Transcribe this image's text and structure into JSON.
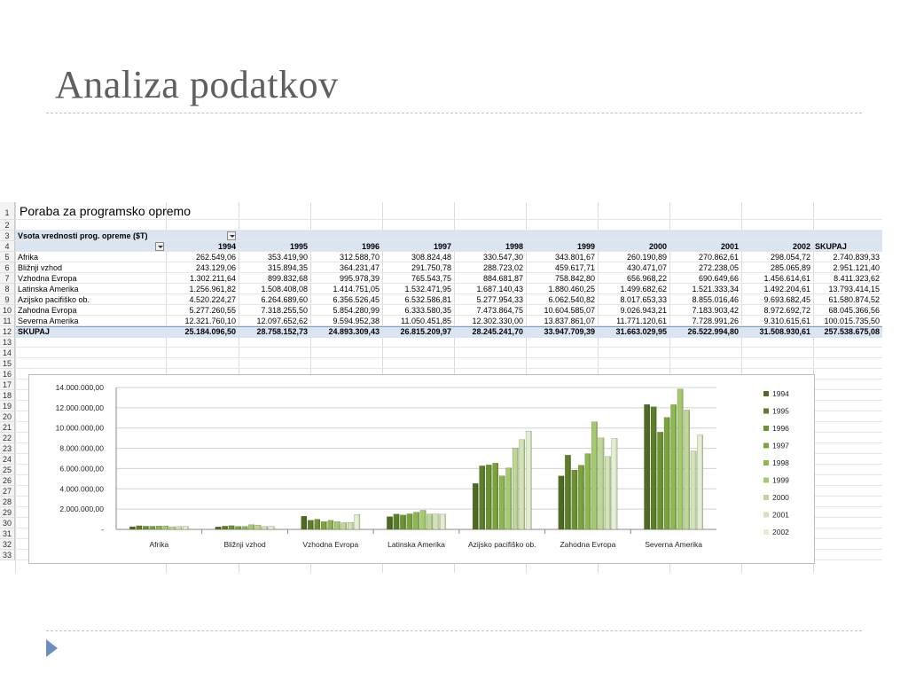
{
  "slide": {
    "title": "Analiza podatkov"
  },
  "sheet": {
    "row_numbers": [
      "1",
      "2",
      "3",
      "4",
      "5",
      "6",
      "7",
      "8",
      "9",
      "10",
      "11",
      "12",
      "13",
      "14",
      "15",
      "16",
      "17",
      "18",
      "19",
      "20",
      "21",
      "22",
      "23",
      "24",
      "25",
      "26",
      "27",
      "28",
      "29",
      "30",
      "31",
      "32",
      "33"
    ],
    "title": "Poraba za programsko opremo",
    "pivot_label": "Vsota vrednosti prog. opreme ($T)",
    "years": [
      "1994",
      "1995",
      "1996",
      "1997",
      "1998",
      "1999",
      "2000",
      "2001",
      "2002"
    ],
    "total_header": "SKUPAJ",
    "rows": [
      {
        "region": "Afrika",
        "values": [
          "262.549,06",
          "353.419,90",
          "312.588,70",
          "308.824,48",
          "330.547,30",
          "343.801,67",
          "260.190,89",
          "270.862,61",
          "298.054,72"
        ],
        "total": "2.740.839,33"
      },
      {
        "region": "Bližnji vzhod",
        "values": [
          "243.129,06",
          "315.894,35",
          "364.231,47",
          "291.750,78",
          "288.723,02",
          "459.617,71",
          "430.471,07",
          "272.238,05",
          "285.065,89"
        ],
        "total": "2.951.121,40"
      },
      {
        "region": "Vzhodna Evropa",
        "values": [
          "1.302.211,64",
          "899.832,68",
          "995.978,39",
          "765.543,75",
          "884.681,87",
          "758.842,80",
          "656.968,22",
          "690.649,66",
          "1.456.614,61"
        ],
        "total": "8.411.323,62"
      },
      {
        "region": "Latinska Amerika",
        "values": [
          "1.256.961,82",
          "1.508.408,08",
          "1.414.751,05",
          "1.532.471,95",
          "1.687.140,43",
          "1.880.460,25",
          "1.499.682,62",
          "1.521.333,34",
          "1.492.204,61"
        ],
        "total": "13.793.414,15"
      },
      {
        "region": "Azijsko pacifiško ob.",
        "values": [
          "4.520.224,27",
          "6.264.689,60",
          "6.356.526,45",
          "6.532.586,81",
          "5.277.954,33",
          "6.062.540,82",
          "8.017.653,33",
          "8.855.016,46",
          "9.693.682,45"
        ],
        "total": "61.580.874,52"
      },
      {
        "region": "Zahodna Evropa",
        "values": [
          "5.277.260,55",
          "7.318.255,50",
          "5.854.280,99",
          "6.333.580,35",
          "7.473.864,75",
          "10.604.585,07",
          "9.026.943,21",
          "7.183.903,42",
          "8.972.692,72"
        ],
        "total": "68.045.366,56"
      },
      {
        "region": "Severna Amerika",
        "values": [
          "12.321.760,10",
          "12.097.652,62",
          "9.594.952,38",
          "11.050.451,85",
          "12.302.330,00",
          "13.837.861,07",
          "11.771.120,61",
          "7.728.991,26",
          "9.310.615,61"
        ],
        "total": "100.015.735,50"
      }
    ],
    "total_row": {
      "label": "SKUPAJ",
      "values": [
        "25.184.096,50",
        "28.758.152,73",
        "24.893.309,43",
        "26.815.209,97",
        "28.245.241,70",
        "33.947.709,39",
        "31.663.029,95",
        "26.522.994,80",
        "31.508.930,61"
      ],
      "total": "257.538.675,08"
    }
  },
  "chart_data": {
    "type": "bar",
    "categories": [
      "Afrika",
      "Bližnji vzhod",
      "Vzhodna Evropa",
      "Latinska Amerika",
      "Azijsko pacifiško ob.",
      "Zahodna Evropa",
      "Severna Amerika"
    ],
    "series": [
      {
        "name": "1994",
        "values": [
          262549.06,
          243129.06,
          1302211.64,
          1256961.82,
          4520224.27,
          5277260.55,
          12321760.1
        ]
      },
      {
        "name": "1995",
        "values": [
          353419.9,
          315894.35,
          899832.68,
          1508408.08,
          6264689.6,
          7318255.5,
          12097652.62
        ]
      },
      {
        "name": "1996",
        "values": [
          312588.7,
          364231.47,
          995978.39,
          1414751.05,
          6356526.45,
          5854280.99,
          9594952.38
        ]
      },
      {
        "name": "1997",
        "values": [
          308824.48,
          291750.78,
          765543.75,
          1532471.95,
          6532586.81,
          6333580.35,
          11050451.85
        ]
      },
      {
        "name": "1998",
        "values": [
          330547.3,
          288723.02,
          884681.87,
          1687140.43,
          5277954.33,
          7473864.75,
          12302330.0
        ]
      },
      {
        "name": "1999",
        "values": [
          343801.67,
          459617.71,
          758842.8,
          1880460.25,
          6062540.82,
          10604585.07,
          13837861.07
        ]
      },
      {
        "name": "2000",
        "values": [
          260190.89,
          430471.07,
          656968.22,
          1499682.62,
          8017653.33,
          9026943.21,
          11771120.61
        ]
      },
      {
        "name": "2001",
        "values": [
          270862.61,
          272238.05,
          690649.66,
          1521333.34,
          8855016.46,
          7183903.42,
          7728991.26
        ]
      },
      {
        "name": "2002",
        "values": [
          298054.72,
          285065.89,
          1456614.61,
          1492204.61,
          9693682.45,
          8972692.72,
          9310615.61
        ]
      }
    ],
    "ylim": [
      0,
      14000000
    ],
    "ytick_labels": [
      "14.000.000,00",
      "12.000.000,00",
      "10.000.000,00",
      "8.000.000,00",
      "6.000.000,00",
      "4.000.000,00",
      "2.000.000,00",
      "-"
    ],
    "legend_position": "right",
    "grid": true,
    "colors": [
      "#4e6b24",
      "#5d7f2b",
      "#6d9232",
      "#7aa43b",
      "#8db84f",
      "#a7c96f",
      "#bfd796",
      "#d3e3b5",
      "#e4eed2"
    ]
  }
}
